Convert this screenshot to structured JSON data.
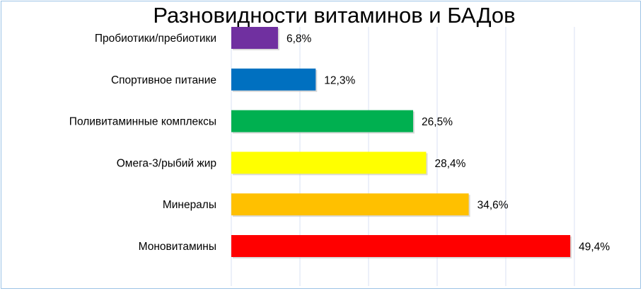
{
  "chart_data": {
    "type": "bar",
    "orientation": "horizontal",
    "title": "Разновидности витаминов и БАДов",
    "xlabel": "",
    "ylabel": "",
    "xlim": [
      0,
      50
    ],
    "grid": true,
    "legend": "none",
    "categories": [
      "Пробиотики/пребиотики",
      "Спортивное питание",
      "Поливитаминные комплексы",
      "Омега-3/рыбий жир",
      "Минералы",
      "Моновитамины"
    ],
    "values": [
      6.8,
      12.3,
      26.5,
      28.4,
      34.6,
      49.4
    ],
    "data_labels": [
      "6,8%",
      "12,3%",
      "26,5%",
      "28,4%",
      "34,6%",
      "49,4%"
    ],
    "colors": [
      "#7030a0",
      "#0070c0",
      "#00b050",
      "#ffff00",
      "#ffc000",
      "#ff0000"
    ]
  },
  "style": {
    "grid_color": "#d9e2f3",
    "frame_color": "#9dc3e6",
    "shadow_color": "#bfbfbf"
  }
}
